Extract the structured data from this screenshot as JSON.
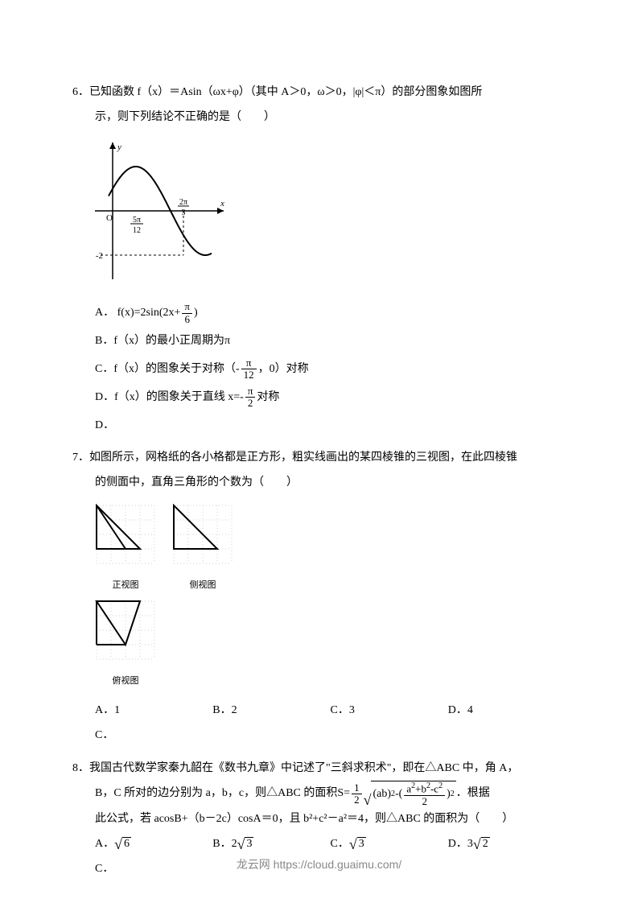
{
  "q6": {
    "number": "6．",
    "text1": "已知函数 f（x）＝Asin（ωx+φ）（其中 A＞0，ω＞0，|φ|＜π）的部分图象如图所",
    "text2": "示，则下列结论不正确的是（　　）",
    "graph": {
      "width": 170,
      "height": 180,
      "axis_color": "#000000",
      "curve_color": "#000000",
      "y_label": "y",
      "x_label": "x",
      "x_tick1_num": "5π",
      "x_tick1_den": "12",
      "x_tick2_num": "2π",
      "x_tick2_den": "3",
      "y_min_label": "-2",
      "origin_label": "O"
    },
    "optA_prefix": "A．",
    "optA_lhs": "f(x)=2sin(2x+",
    "optA_frac_num": "π",
    "optA_frac_den": "6",
    "optA_rhs": ")",
    "optB": "B．f（x）的最小正周期为π",
    "optC_prefix": "C．f（x）的图象关于对称（-",
    "optC_frac_num": "π",
    "optC_frac_den": "12",
    "optC_suffix": "，0）对称",
    "optD_prefix": "D．f（x）的图象关于直线 ",
    "optD_eq": "x=-",
    "optD_frac_num": "π",
    "optD_frac_den": "2",
    "optD_suffix": "对称",
    "answer": "D．"
  },
  "q7": {
    "number": "7．",
    "text1": "如图所示，网格纸的各小格都是正方形，粗实线画出的某四棱锥的三视图，在此四棱锥",
    "text2": "的侧面中，直角三角形的个数为（　　）",
    "views": {
      "grid_color": "#d0d0d0",
      "line_color": "#000000",
      "label1": "正视图",
      "label2": "侧视图",
      "label3": "俯视图",
      "cell": 18,
      "grid_n": 4
    },
    "optA": "A．1",
    "optB": "B．2",
    "optC": "C．3",
    "optD": "D．4",
    "answer": "C．"
  },
  "q8": {
    "number": "8．",
    "text1": "我国古代数学家秦九韶在《数书九章》中记述了\"三斜求积术\"，即在△ABC 中，角 A，",
    "text2_a": "B，C 所对的边分别为 a，b，c，则△ABC 的面积 ",
    "formula": {
      "lhs": "S=",
      "half_num": "1",
      "half_den": "2",
      "rad_a": "(ab)",
      "rad_a_sup": "2",
      "minus": "-(",
      "inner_num": "a",
      "inner_num2": "+b",
      "inner_num3": "-c",
      "inner_den": "2",
      "close": ")",
      "outer_sup": "2"
    },
    "text2_b": "．根据",
    "text3": "此公式，若 acosB+（b－2c）cosA＝0，且 b²+c²－a²＝4，则△ABC 的面积为（　　）",
    "optA_prefix": "A．",
    "optA_rad": "6",
    "optB_prefix": "B．2",
    "optB_rad": "3",
    "optC_prefix": "C．",
    "optC_rad": "3",
    "optD_prefix": "D．3",
    "optD_rad": "2",
    "answer": "C．"
  },
  "footer": "龙云网 https://cloud.guaimu.com/"
}
